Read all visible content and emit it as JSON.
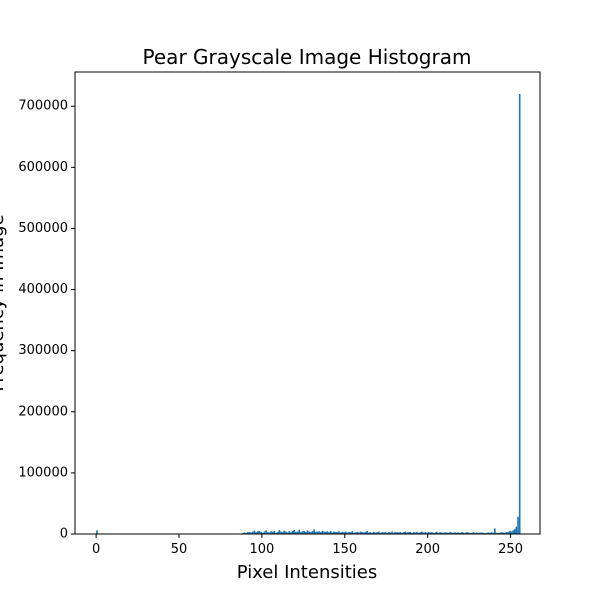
{
  "chart_data": {
    "type": "histogram",
    "title": "Pear Grayscale Image Histogram",
    "x_label": "Pixel Intensities",
    "y_label": "Frequency in Image",
    "color": "#1f77b4",
    "bins": [
      0,
      1,
      2,
      3,
      4,
      5,
      6,
      7,
      8,
      9,
      10,
      11,
      12,
      13,
      14,
      15,
      16,
      17,
      18,
      19,
      20,
      21,
      22,
      23,
      24,
      25,
      26,
      27,
      28,
      29,
      30,
      31,
      32,
      33,
      34,
      35,
      36,
      37,
      38,
      39,
      40,
      41,
      42,
      43,
      44,
      45,
      46,
      47,
      48,
      49,
      50,
      51,
      52,
      53,
      54,
      55,
      56,
      57,
      58,
      59,
      60,
      61,
      62,
      63,
      64,
      65,
      66,
      67,
      68,
      69,
      70,
      71,
      72,
      73,
      74,
      75,
      76,
      77,
      78,
      79,
      80,
      81,
      82,
      83,
      84,
      85,
      86,
      87,
      88,
      89,
      90,
      91,
      92,
      93,
      94,
      95,
      96,
      97,
      98,
      99,
      100,
      101,
      102,
      103,
      104,
      105,
      106,
      107,
      108,
      109,
      110,
      111,
      112,
      113,
      114,
      115,
      116,
      117,
      118,
      119,
      120,
      121,
      122,
      123,
      124,
      125,
      126,
      127,
      128,
      129,
      130,
      131,
      132,
      133,
      134,
      135,
      136,
      137,
      138,
      139,
      140,
      141,
      142,
      143,
      144,
      145,
      146,
      147,
      148,
      149,
      150,
      151,
      152,
      153,
      154,
      155,
      156,
      157,
      158,
      159,
      160,
      161,
      162,
      163,
      164,
      165,
      166,
      167,
      168,
      169,
      170,
      171,
      172,
      173,
      174,
      175,
      176,
      177,
      178,
      179,
      180,
      181,
      182,
      183,
      184,
      185,
      186,
      187,
      188,
      189,
      190,
      191,
      192,
      193,
      194,
      195,
      196,
      197,
      198,
      199,
      200,
      201,
      202,
      203,
      204,
      205,
      206,
      207,
      208,
      209,
      210,
      211,
      212,
      213,
      214,
      215,
      216,
      217,
      218,
      219,
      220,
      221,
      222,
      223,
      224,
      225,
      226,
      227,
      228,
      229,
      230,
      231,
      232,
      233,
      234,
      235,
      236,
      237,
      238,
      239,
      240,
      241,
      242,
      243,
      244,
      245,
      246,
      247,
      248,
      249,
      250,
      251,
      252,
      253,
      254,
      255,
      256
    ],
    "values": [
      6000,
      0,
      0,
      0,
      0,
      0,
      0,
      0,
      0,
      0,
      0,
      0,
      0,
      0,
      0,
      0,
      0,
      0,
      0,
      0,
      0,
      0,
      0,
      0,
      0,
      0,
      0,
      0,
      0,
      0,
      0,
      0,
      0,
      0,
      0,
      0,
      0,
      0,
      0,
      0,
      0,
      0,
      0,
      0,
      0,
      0,
      0,
      0,
      0,
      0,
      0,
      0,
      0,
      0,
      0,
      0,
      0,
      0,
      0,
      0,
      0,
      0,
      0,
      0,
      0,
      0,
      0,
      0,
      0,
      0,
      0,
      0,
      0,
      0,
      0,
      0,
      0,
      0,
      0,
      0,
      0,
      0,
      0,
      0,
      0,
      0,
      0,
      0,
      1500,
      2500,
      2000,
      3000,
      3500,
      2500,
      4000,
      5500,
      3000,
      4500,
      5000,
      3500,
      2000,
      4000,
      6000,
      3000,
      2500,
      4500,
      3500,
      5000,
      2000,
      3000,
      6500,
      4000,
      3000,
      5500,
      4000,
      2500,
      4500,
      3000,
      5000,
      6500,
      3500,
      4000,
      7000,
      3000,
      4500,
      5000,
      3500,
      6000,
      4000,
      3000,
      5000,
      7500,
      3500,
      4000,
      4500,
      3000,
      5000,
      4000,
      3500,
      4500,
      3000,
      5000,
      2500,
      4000,
      3500,
      3000,
      4500,
      2500,
      3500,
      3000,
      4000,
      2500,
      3500,
      3000,
      4500,
      2000,
      3000,
      3500,
      2500,
      4000,
      3000,
      2500,
      3500,
      5000,
      2500,
      3000,
      2000,
      3500,
      2500,
      3000,
      4000,
      2000,
      3000,
      2500,
      3500,
      2000,
      3000,
      2500,
      4000,
      2000,
      3500,
      3000,
      2500,
      3500,
      2000,
      3000,
      4000,
      2500,
      3000,
      3500,
      2000,
      3000,
      2500,
      3500,
      2000,
      3000,
      4000,
      2500,
      3000,
      2000,
      3500,
      2500,
      3000,
      2000,
      2500,
      3500,
      2000,
      3000,
      2500,
      2000,
      3000,
      2500,
      2000,
      3500,
      2500,
      2000,
      3000,
      2000,
      2500,
      2000,
      3000,
      2500,
      2000,
      3000,
      2500,
      2000,
      1500,
      3000,
      2000,
      2500,
      1500,
      2000,
      2500,
      2000,
      1500,
      2000,
      2500,
      2000,
      3000,
      2000,
      9000,
      2000,
      1500,
      2000,
      3000,
      2500,
      2000,
      3500,
      3000,
      5000,
      4000,
      6000,
      8000,
      12000,
      28000,
      720000
    ],
    "xlim": [
      -12.75,
      267.75
    ],
    "ylim": [
      0,
      756000
    ],
    "xticks": [
      0,
      50,
      100,
      150,
      200,
      250
    ],
    "yticks": [
      0,
      100000,
      200000,
      300000,
      400000,
      500000,
      600000,
      700000
    ]
  }
}
